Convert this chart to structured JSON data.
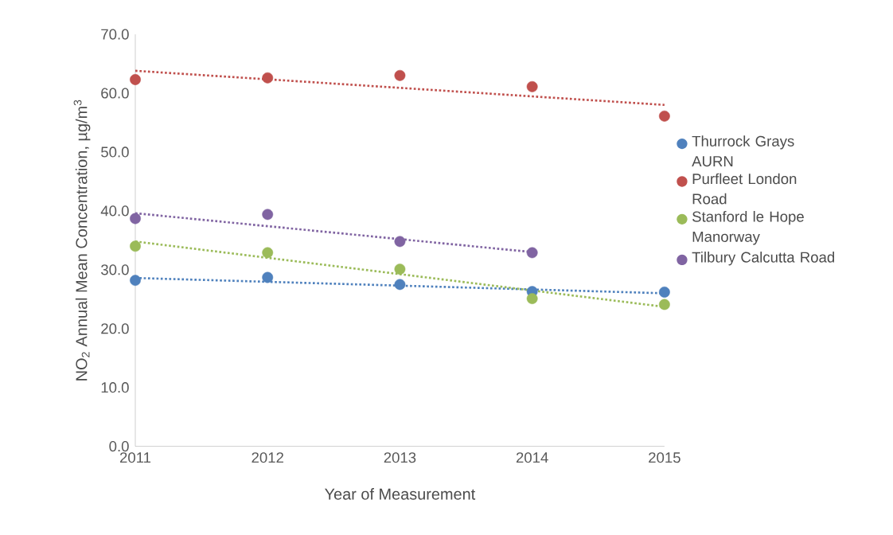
{
  "chart_data": {
    "type": "scatter",
    "xlabel": "Year of Measurement",
    "ylabel": "NO$_{2}$ Annual Mean Concentration, µg/m$^{3}$",
    "xlim": [
      2011,
      2015
    ],
    "xticks": [
      2011,
      2012,
      2013,
      2014,
      2015
    ],
    "ylim": [
      0,
      70
    ],
    "yticks": [
      {
        "value": 0,
        "label": "0.0"
      },
      {
        "value": 10,
        "label": "10.0"
      },
      {
        "value": 20,
        "label": "20.0"
      },
      {
        "value": 30,
        "label": "30.0"
      },
      {
        "value": 40,
        "label": "40.0"
      },
      {
        "value": 50,
        "label": "50.0"
      },
      {
        "value": 60,
        "label": "60.0"
      },
      {
        "value": 70,
        "label": "70.0"
      }
    ],
    "grid": false,
    "legend": "right",
    "marker": "circle",
    "x": [
      2011,
      2012,
      2013,
      2014,
      2015
    ],
    "series": [
      {
        "name": "Thurrock Grays AURN",
        "color": "#4f81bd",
        "values": [
          28.2,
          28.7,
          27.5,
          26.3,
          26.2
        ]
      },
      {
        "name": "Purfleet London Road",
        "color": "#c0504d",
        "values": [
          62.3,
          62.6,
          63.0,
          61.1,
          56.1
        ]
      },
      {
        "name": "Stanford le Hope Manorway",
        "color": "#9bbb59",
        "values": [
          34.0,
          32.9,
          30.1,
          25.1,
          24.1
        ]
      },
      {
        "name": "Tilbury Calcutta Road",
        "color": "#8064a2",
        "values": [
          38.7,
          39.4,
          34.8,
          32.9,
          null
        ]
      },
      {
        "type": "line",
        "color": "#4f81bd",
        "line_style": "dotted",
        "marker": "none",
        "x": [
          2011,
          2015
        ],
        "values": [
          28.6,
          26.0
        ]
      },
      {
        "type": "line",
        "color": "#c0504d",
        "line_style": "dotted",
        "marker": "none",
        "x": [
          2011,
          2015
        ],
        "values": [
          63.8,
          58.0
        ]
      },
      {
        "type": "line",
        "color": "#9bbb59",
        "line_style": "dotted",
        "marker": "none",
        "x": [
          2011,
          2015
        ],
        "values": [
          34.8,
          23.7
        ]
      },
      {
        "type": "line",
        "color": "#8064a2",
        "line_style": "dotted",
        "marker": "none",
        "x": [
          2011,
          2014
        ],
        "values": [
          39.6,
          33.0
        ]
      }
    ]
  }
}
